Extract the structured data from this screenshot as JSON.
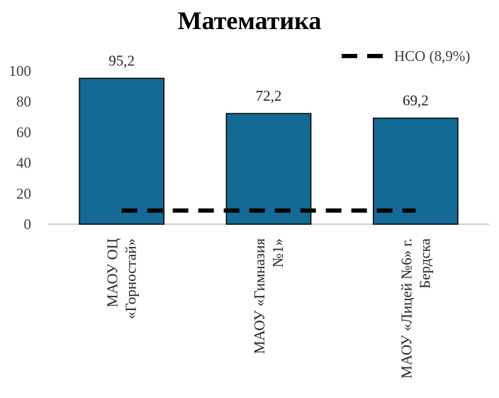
{
  "chart_data": {
    "type": "bar",
    "title": "Математика",
    "categories": [
      [
        "МАОУ ОЦ",
        "«Горностай»"
      ],
      [
        "МАОУ «Гимназия",
        "№1»"
      ],
      [
        "МАОУ «Лицей №6» г.",
        "Бердска"
      ]
    ],
    "values": [
      95.2,
      72.2,
      69.2
    ],
    "data_labels": [
      "95,2",
      "72,2",
      "69,2"
    ],
    "reference_line": {
      "name": "НСО (8,9%)",
      "value": 8.9,
      "style": "dashed",
      "color": "#000000"
    },
    "ylim": [
      0,
      100
    ],
    "yticks": [
      0,
      20,
      40,
      60,
      80,
      100
    ],
    "bar_color": "#136a94",
    "grid": false,
    "legend_position": "top-right"
  }
}
